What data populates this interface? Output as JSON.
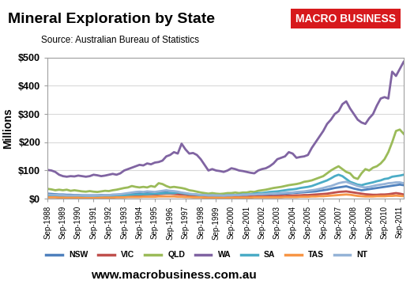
{
  "chart_data": {
    "type": "line",
    "title": "Mineral Exploration by State",
    "subtitle": "Source: Australian Bureau of Statistics",
    "logo_text": "MACRO BUSINESS",
    "footer": "www.macrobusiness.com.au",
    "y_label": "Millions",
    "categories": [
      "Sep-1988",
      null,
      null,
      null,
      "Sep-1989",
      null,
      null,
      null,
      "Sep-1990",
      null,
      null,
      null,
      "Sep-1991",
      null,
      null,
      null,
      "Sep-1992",
      null,
      null,
      null,
      "Sep-1993",
      null,
      null,
      null,
      "Sep-1994",
      null,
      null,
      null,
      "Sep-1995",
      null,
      null,
      null,
      "Sep-1996",
      null,
      null,
      null,
      "Sep-1997",
      null,
      null,
      null,
      "Sep-1998",
      null,
      null,
      null,
      "Sep-1999",
      null,
      null,
      null,
      "Sep-2000",
      null,
      null,
      null,
      "Sep-2001",
      null,
      null,
      null,
      "Sep-2002",
      null,
      null,
      null,
      "Sep-2003",
      null,
      null,
      null,
      "Sep-2004",
      null,
      null,
      null,
      "Sep-2005",
      null,
      null,
      null,
      "Sep-2006",
      null,
      null,
      null,
      "Sep-2007",
      null,
      null,
      null,
      "Sep-2008",
      null,
      null,
      null,
      "Sep-2009",
      null,
      null,
      null,
      "Sep-2010",
      null,
      null,
      null,
      "Sep-2011",
      null
    ],
    "series": [
      {
        "name": "NSW",
        "color": "#4F81BD",
        "values": [
          18,
          17,
          16,
          15,
          15,
          14,
          14,
          13,
          13,
          12,
          12,
          12,
          12,
          12,
          13,
          13,
          13,
          14,
          14,
          15,
          16,
          17,
          18,
          18,
          19,
          20,
          20,
          21,
          22,
          22,
          23,
          22,
          21,
          20,
          20,
          19,
          18,
          16,
          15,
          14,
          13,
          12,
          12,
          12,
          11,
          11,
          11,
          12,
          12,
          12,
          12,
          13,
          13,
          13,
          14,
          14,
          14,
          15,
          15,
          16,
          16,
          17,
          18,
          19,
          20,
          21,
          22,
          23,
          24,
          25,
          26,
          28,
          30,
          32,
          35,
          38,
          40,
          42,
          44,
          40,
          36,
          33,
          30,
          32,
          34,
          36,
          38,
          40,
          42,
          44,
          46,
          48,
          50,
          48
        ]
      },
      {
        "name": "VIC",
        "color": "#C0504D",
        "values": [
          8,
          8,
          7,
          7,
          7,
          6,
          6,
          6,
          6,
          6,
          5,
          5,
          5,
          5,
          6,
          6,
          6,
          7,
          7,
          8,
          8,
          9,
          10,
          12,
          12,
          13,
          14,
          15,
          15,
          16,
          17,
          18,
          18,
          17,
          16,
          15,
          14,
          12,
          10,
          9,
          8,
          8,
          7,
          7,
          7,
          6,
          6,
          6,
          6,
          7,
          7,
          7,
          7,
          8,
          8,
          8,
          8,
          8,
          9,
          9,
          9,
          10,
          10,
          11,
          11,
          12,
          12,
          13,
          13,
          14,
          15,
          16,
          17,
          18,
          20,
          22,
          24,
          25,
          26,
          24,
          22,
          20,
          18,
          16,
          15,
          14,
          14,
          15,
          15,
          16,
          18,
          20,
          18,
          15
        ]
      },
      {
        "name": "QLD",
        "color": "#9BBB59",
        "values": [
          35,
          33,
          30,
          32,
          30,
          32,
          28,
          30,
          28,
          26,
          25,
          27,
          25,
          24,
          26,
          28,
          27,
          30,
          32,
          35,
          38,
          40,
          45,
          42,
          40,
          42,
          40,
          45,
          42,
          55,
          52,
          45,
          40,
          42,
          40,
          38,
          35,
          30,
          28,
          25,
          22,
          20,
          18,
          20,
          18,
          17,
          18,
          20,
          20,
          22,
          20,
          22,
          22,
          25,
          24,
          28,
          30,
          32,
          35,
          38,
          40,
          42,
          45,
          48,
          50,
          52,
          55,
          60,
          62,
          65,
          70,
          75,
          80,
          90,
          100,
          108,
          115,
          105,
          95,
          90,
          75,
          70,
          90,
          105,
          100,
          110,
          115,
          125,
          140,
          165,
          200,
          240,
          245,
          230
        ]
      },
      {
        "name": "WA",
        "color": "#8064A2",
        "values": [
          102,
          100,
          95,
          85,
          80,
          78,
          80,
          79,
          82,
          80,
          78,
          80,
          85,
          83,
          80,
          82,
          85,
          88,
          85,
          90,
          100,
          105,
          110,
          115,
          120,
          118,
          125,
          122,
          128,
          130,
          135,
          150,
          155,
          165,
          160,
          195,
          175,
          160,
          162,
          155,
          140,
          120,
          100,
          105,
          100,
          98,
          95,
          100,
          108,
          105,
          100,
          98,
          95,
          92,
          90,
          100,
          105,
          108,
          115,
          125,
          140,
          145,
          150,
          165,
          160,
          145,
          148,
          150,
          155,
          180,
          200,
          220,
          240,
          265,
          280,
          300,
          310,
          335,
          345,
          320,
          300,
          280,
          270,
          265,
          285,
          300,
          330,
          355,
          360,
          355,
          450,
          435,
          460,
          485
        ]
      },
      {
        "name": "SA",
        "color": "#4BACC6",
        "values": [
          12,
          12,
          11,
          10,
          10,
          9,
          9,
          8,
          8,
          8,
          7,
          8,
          8,
          8,
          9,
          9,
          10,
          10,
          11,
          12,
          12,
          13,
          14,
          15,
          15,
          16,
          16,
          17,
          18,
          18,
          19,
          20,
          20,
          20,
          22,
          20,
          18,
          16,
          15,
          14,
          12,
          12,
          11,
          11,
          10,
          10,
          11,
          12,
          12,
          13,
          14,
          15,
          15,
          16,
          18,
          20,
          20,
          22,
          24,
          25,
          26,
          28,
          30,
          32,
          33,
          35,
          38,
          40,
          42,
          45,
          50,
          55,
          60,
          65,
          72,
          80,
          85,
          80,
          70,
          60,
          55,
          50,
          48,
          52,
          55,
          58,
          62,
          65,
          70,
          72,
          78,
          80,
          82,
          85
        ]
      },
      {
        "name": "TAS",
        "color": "#F79646",
        "values": [
          5,
          5,
          5,
          4,
          4,
          4,
          4,
          4,
          4,
          3,
          3,
          3,
          3,
          3,
          4,
          4,
          4,
          4,
          5,
          5,
          5,
          6,
          6,
          6,
          6,
          7,
          7,
          7,
          7,
          8,
          8,
          8,
          8,
          8,
          7,
          7,
          6,
          6,
          5,
          5,
          5,
          4,
          4,
          4,
          4,
          4,
          4,
          4,
          4,
          4,
          4,
          4,
          4,
          4,
          5,
          5,
          5,
          5,
          5,
          5,
          5,
          5,
          6,
          6,
          6,
          6,
          7,
          7,
          7,
          8,
          8,
          9,
          9,
          10,
          11,
          12,
          13,
          14,
          15,
          14,
          12,
          10,
          9,
          8,
          8,
          8,
          9,
          9,
          9,
          10,
          10,
          11,
          10,
          9
        ]
      },
      {
        "name": "NT",
        "color": "#95B3D7",
        "values": [
          15,
          14,
          14,
          13,
          13,
          12,
          12,
          12,
          12,
          12,
          11,
          11,
          11,
          12,
          12,
          13,
          13,
          14,
          15,
          16,
          18,
          20,
          22,
          24,
          25,
          24,
          26,
          25,
          24,
          26,
          28,
          30,
          28,
          27,
          25,
          22,
          20,
          18,
          16,
          15,
          14,
          13,
          12,
          12,
          12,
          12,
          11,
          12,
          12,
          13,
          13,
          14,
          14,
          15,
          15,
          16,
          16,
          17,
          18,
          18,
          19,
          20,
          21,
          22,
          22,
          24,
          25,
          26,
          28,
          30,
          32,
          35,
          38,
          42,
          45,
          50,
          55,
          58,
          60,
          55,
          50,
          45,
          42,
          40,
          42,
          45,
          48,
          50,
          52,
          55,
          56,
          58,
          58,
          55
        ]
      }
    ],
    "ylim": [
      0,
      500
    ],
    "yticks": [
      {
        "value": 0,
        "label": "$0"
      },
      {
        "value": 100,
        "label": "$100"
      },
      {
        "value": 200,
        "label": "$200"
      },
      {
        "value": 300,
        "label": "$300"
      },
      {
        "value": 400,
        "label": "$400"
      },
      {
        "value": 500,
        "label": "$500"
      }
    ],
    "grid": true,
    "legend": "lower center"
  }
}
